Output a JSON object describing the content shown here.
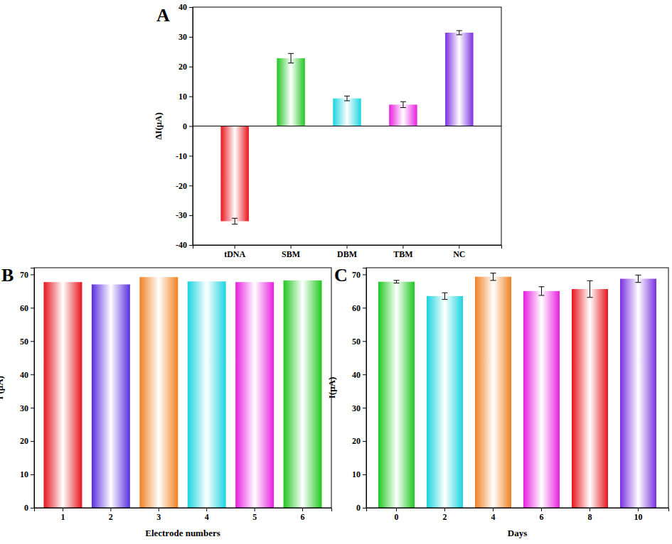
{
  "chart_data": [
    {
      "type": "bar",
      "title": "A",
      "categories": [
        "tDNA",
        "SBM",
        "DBM",
        "TBM",
        "NC"
      ],
      "values": [
        -32.0,
        22.8,
        9.3,
        7.2,
        31.4
      ],
      "errors": [
        1.0,
        1.6,
        0.8,
        1.0,
        0.7
      ],
      "colors": [
        "#e8141c",
        "#1fc81f",
        "#19d4e0",
        "#e81ee0",
        "#7a2fe0"
      ],
      "ylabel": "ΔI(μA)",
      "ylim": [
        -40,
        40
      ],
      "yticks": [
        -40,
        -30,
        -20,
        -10,
        0,
        10,
        20,
        30,
        40
      ],
      "grid": false
    },
    {
      "type": "bar",
      "title": "B",
      "categories": [
        "1",
        "2",
        "3",
        "4",
        "5",
        "6"
      ],
      "values": [
        67.7,
        67.0,
        69.2,
        67.9,
        67.7,
        68.2
      ],
      "colors": [
        "#e8141c",
        "#5a2ee0",
        "#f08020",
        "#19d4e0",
        "#e81ee0",
        "#1fc81f"
      ],
      "xlabel": "Electrode numbers",
      "ylabel": "I (μA)",
      "ylim": [
        0,
        72
      ],
      "yticks": [
        0,
        10,
        20,
        30,
        40,
        50,
        60,
        70
      ],
      "grid": false
    },
    {
      "type": "bar",
      "title": "C",
      "categories": [
        "0",
        "2",
        "4",
        "6",
        "8",
        "10"
      ],
      "values": [
        67.8,
        63.5,
        69.3,
        65.0,
        65.6,
        68.7
      ],
      "errors": [
        0.4,
        1.0,
        1.1,
        1.3,
        2.5,
        1.1
      ],
      "colors": [
        "#1fc81f",
        "#19d4e0",
        "#f08020",
        "#e81ee0",
        "#e8141c",
        "#7a2fe0"
      ],
      "xlabel": "Days",
      "ylabel": "I(μA)",
      "ylim": [
        0,
        72
      ],
      "yticks": [
        0,
        10,
        20,
        30,
        40,
        50,
        60,
        70
      ],
      "grid": false
    }
  ]
}
